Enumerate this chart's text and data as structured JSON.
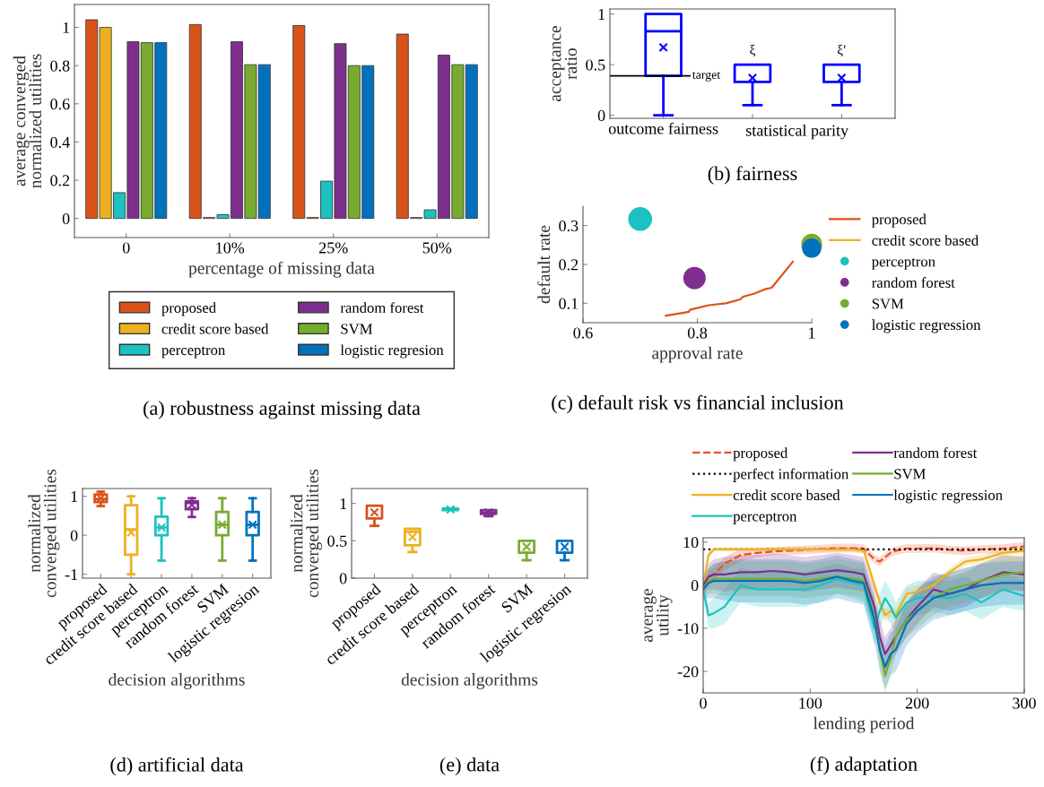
{
  "chart_data": [
    {
      "type": "bar",
      "title": "(a) robustness against missing data",
      "xlabel": "percentage of missing data",
      "ylabel": "average converged\nnormalized utilities",
      "categories": [
        "0",
        "10%",
        "25%",
        "50%"
      ],
      "ylim": [
        -0.1,
        1.12
      ],
      "yticks": [
        0,
        0.2,
        0.4,
        0.6,
        0.8,
        1
      ],
      "legend": "bottom",
      "series": [
        {
          "name": "proposed",
          "color": "#d95319",
          "values": [
            1.04,
            1.015,
            1.01,
            0.965
          ]
        },
        {
          "name": "credit score based",
          "color": "#edb120",
          "values": [
            1.0,
            0.005,
            0.005,
            0.005
          ]
        },
        {
          "name": "perceptron",
          "color": "#1cc2c2",
          "values": [
            0.135,
            0.02,
            0.195,
            0.045
          ]
        },
        {
          "name": "random forest",
          "color": "#7e2f8e",
          "values": [
            0.925,
            0.925,
            0.915,
            0.855
          ]
        },
        {
          "name": "SVM",
          "color": "#77ac30",
          "values": [
            0.92,
            0.805,
            0.8,
            0.805
          ]
        },
        {
          "name": "logistic regresion",
          "color": "#0072bd",
          "values": [
            0.92,
            0.805,
            0.8,
            0.805
          ]
        }
      ]
    },
    {
      "type": "box",
      "title": "(b) fairness",
      "ylabel": "acceptance\nratio",
      "categories": [
        "outcome fairness",
        null,
        null
      ],
      "ylim": [
        -0.03,
        1.05
      ],
      "yticks": [
        0,
        0.5,
        1
      ],
      "colors": [
        "#0000ff",
        "#0000ff",
        "#0000ff"
      ],
      "boxes": [
        {
          "low": 0,
          "q1": 0.39,
          "median": 0.83,
          "q3": 1.0,
          "high": 1.0,
          "mean": 0.67
        },
        {
          "low": 0.1,
          "q1": 0.33,
          "median": 0.33,
          "q3": 0.5,
          "high": 0.5,
          "mean": 0.37
        },
        {
          "low": 0.1,
          "q1": 0.33,
          "median": 0.33,
          "q3": 0.5,
          "high": 0.5,
          "mean": 0.37
        }
      ],
      "ref_lines": [
        {
          "axis": "y",
          "value": 0.39,
          "label": "target",
          "color": "#000000"
        }
      ],
      "annotations": [
        "ξ",
        "ξ′",
        "statistical parity"
      ]
    },
    {
      "type": "scatter",
      "title": "(c) default risk vs financial inclusion",
      "xlabel": "approval rate",
      "ylabel": "default rate",
      "xlim": [
        0.6,
        1.0
      ],
      "xticks": [
        0.6,
        0.8,
        1
      ],
      "ylim": [
        0.05,
        0.35
      ],
      "yticks": [
        0.1,
        0.2,
        0.3
      ],
      "legend": "right",
      "series": [
        {
          "name": "proposed",
          "type": "line",
          "color": "#d95319",
          "x": [
            0.745,
            0.785,
            0.787,
            0.82,
            0.85,
            0.875,
            0.88,
            0.9,
            0.92,
            0.93,
            0.967
          ],
          "values": [
            0.068,
            0.078,
            0.083,
            0.095,
            0.1,
            0.11,
            0.117,
            0.125,
            0.137,
            0.14,
            0.207
          ]
        },
        {
          "name": "credit score based",
          "type": "line",
          "color": "#edb120"
        },
        {
          "name": "perceptron",
          "color": "#1cc2c2",
          "x": [
            0.7
          ],
          "values": [
            0.317
          ]
        },
        {
          "name": "random forest",
          "color": "#7e2f8e",
          "x": [
            0.795
          ],
          "values": [
            0.165
          ]
        },
        {
          "name": "SVM",
          "color": "#77ac30",
          "x": [
            1.0
          ],
          "values": [
            0.252
          ]
        },
        {
          "name": "logistic regression",
          "color": "#0072bd",
          "x": [
            1.0
          ],
          "values": [
            0.242
          ]
        }
      ]
    },
    {
      "type": "box",
      "title": "(d) artificial data",
      "xlabel": "decision algorithms",
      "ylabel": "normalized\nconverged utilities",
      "categories": [
        "proposed",
        "credit score based",
        "perceptron",
        "random forest",
        "SVM",
        "logistic regresion"
      ],
      "ylim": [
        -1.1,
        1.2
      ],
      "yticks": [
        -1,
        0,
        1
      ],
      "colors": [
        "#d95319",
        "#edb120",
        "#1cc2c2",
        "#7e2f8e",
        "#77ac30",
        "#0072bd"
      ],
      "boxes": [
        {
          "low": 0.75,
          "q1": 0.85,
          "median": 0.93,
          "q3": 1.05,
          "high": 1.12,
          "mean": 0.95
        },
        {
          "low": -1.0,
          "q1": -0.5,
          "median": 0.15,
          "q3": 0.77,
          "high": 1.0,
          "mean": 0.07
        },
        {
          "low": -0.65,
          "q1": 0.0,
          "median": 0.2,
          "q3": 0.48,
          "high": 0.95,
          "mean": 0.2
        },
        {
          "low": 0.47,
          "q1": 0.67,
          "median": 0.83,
          "q3": 0.87,
          "high": 0.95,
          "mean": 0.78
        },
        {
          "low": -0.65,
          "q1": 0.0,
          "median": 0.27,
          "q3": 0.6,
          "high": 0.95,
          "mean": 0.27
        },
        {
          "low": -0.65,
          "q1": 0.0,
          "median": 0.27,
          "q3": 0.6,
          "high": 0.95,
          "mean": 0.27
        }
      ]
    },
    {
      "type": "box",
      "title": "(e) data",
      "xlabel": "decision algorithms",
      "ylabel": "normalized\nconverged utilities",
      "categories": [
        "proposed",
        "credit score based",
        "perceptron",
        "random forest",
        "SVM",
        "logistic regresion"
      ],
      "ylim": [
        0,
        1.2
      ],
      "yticks": [
        0,
        0.5,
        1
      ],
      "colors": [
        "#d95319",
        "#edb120",
        "#1cc2c2",
        "#7e2f8e",
        "#77ac30",
        "#0072bd"
      ],
      "boxes": [
        {
          "low": 0.7,
          "q1": 0.8,
          "median": 0.97,
          "q3": 0.97,
          "high": 0.97,
          "mean": 0.88
        },
        {
          "low": 0.35,
          "q1": 0.44,
          "median": 0.62,
          "q3": 0.66,
          "high": 0.66,
          "mean": 0.55
        },
        {
          "low": 0.91,
          "q1": 0.91,
          "median": 0.92,
          "q3": 0.93,
          "high": 0.93,
          "mean": 0.92
        },
        {
          "low": 0.83,
          "q1": 0.86,
          "median": 0.88,
          "q3": 0.91,
          "high": 0.91,
          "mean": 0.88
        },
        {
          "low": 0.24,
          "q1": 0.34,
          "median": 0.5,
          "q3": 0.5,
          "high": 0.5,
          "mean": 0.42
        },
        {
          "low": 0.24,
          "q1": 0.34,
          "median": 0.5,
          "q3": 0.5,
          "high": 0.5,
          "mean": 0.42
        }
      ]
    },
    {
      "type": "line",
      "title": "(f) adaptation",
      "xlabel": "lending period",
      "ylabel": "average\nutility",
      "xlim": [
        0,
        300
      ],
      "xticks": [
        0,
        100,
        200,
        300
      ],
      "ylim": [
        -25,
        11
      ],
      "yticks": [
        -20,
        -10,
        0,
        10
      ],
      "legend": "top",
      "x": [
        0,
        5,
        10,
        20,
        35,
        50,
        65,
        80,
        95,
        110,
        125,
        140,
        150,
        160,
        165,
        170,
        175,
        180,
        190,
        200,
        215,
        230,
        245,
        260,
        280,
        300
      ],
      "series": [
        {
          "name": "proposed",
          "color": "#e8502a",
          "line_style": "dashed",
          "values": [
            0,
            2,
            2.5,
            5,
            7,
            7.5,
            7.8,
            8,
            8.2,
            8.4,
            8.6,
            8.6,
            8.5,
            6,
            5.5,
            6.5,
            7.5,
            8,
            8.5,
            8.5,
            8.6,
            8.2,
            8,
            8.3,
            8.5,
            9
          ],
          "lower": [
            -1,
            0.5,
            1,
            3.5,
            5.5,
            6.5,
            7,
            7,
            7.2,
            7.4,
            7.6,
            7.6,
            7.5,
            5,
            4.5,
            5.5,
            6.5,
            7,
            7.5,
            7.5,
            7.6,
            7.2,
            7,
            7.3,
            7.5,
            8
          ],
          "upper": [
            1,
            3.5,
            4,
            6.5,
            8.5,
            8.5,
            8.8,
            9,
            9.2,
            9.4,
            9.6,
            9.6,
            9.5,
            7,
            6.5,
            7.5,
            8.5,
            9,
            9.5,
            9.5,
            9.6,
            9.2,
            9,
            9.3,
            9.5,
            10
          ]
        },
        {
          "name": "perfect information",
          "color": "#000000",
          "line_style": "dotted",
          "x": [
            0,
            300
          ],
          "values": [
            8.3,
            8.3
          ]
        },
        {
          "name": "credit score based",
          "color": "#edb120",
          "values": [
            0,
            7,
            8.3,
            8.3,
            8.3,
            8.3,
            8.3,
            8.3,
            8.3,
            8.3,
            8.3,
            8.3,
            8,
            0,
            -4,
            -7,
            -6,
            -7,
            -2,
            -1.5,
            0,
            3,
            5.5,
            6,
            7.5,
            8
          ],
          "lower": [
            -1,
            6,
            7.8,
            7.8,
            7.8,
            7.8,
            7.8,
            7.8,
            7.8,
            7.8,
            7.8,
            7.8,
            7.3,
            -1.5,
            -5.5,
            -8.5,
            -7.5,
            -8.5,
            -3.5,
            -3,
            -1,
            2,
            4.5,
            5,
            6.5,
            7.3
          ],
          "upper": [
            1,
            8,
            8.8,
            8.8,
            8.8,
            8.8,
            8.8,
            8.8,
            8.8,
            8.8,
            8.8,
            8.8,
            8.7,
            1.5,
            -2.5,
            -5.5,
            -4.5,
            -5.5,
            -0.5,
            0,
            1,
            4,
            6.5,
            7,
            8.5,
            8.7
          ]
        },
        {
          "name": "perceptron",
          "color": "#1cc2c2",
          "values": [
            -1,
            -7,
            -6.5,
            -5,
            0,
            -1,
            -1,
            -1,
            -1,
            0,
            1.5,
            0.5,
            0,
            -10,
            -6,
            -3,
            -5,
            -7.5,
            -4,
            -3,
            -2.5,
            -3,
            -2,
            -4,
            -1,
            -2.5
          ],
          "lower": [
            -3,
            -10,
            -10,
            -9,
            -4,
            -5,
            -5,
            -5,
            -5,
            -4,
            -2,
            -3,
            -4,
            -14,
            -10,
            -7,
            -9,
            -11,
            -8,
            -7,
            -6,
            -7,
            -6,
            -8,
            -5,
            -6
          ],
          "upper": [
            1,
            -4,
            -3,
            -1,
            4,
            3,
            3,
            3,
            3,
            4,
            5,
            4,
            4,
            -6,
            -2,
            1,
            -1,
            -4,
            0,
            1,
            1,
            1,
            2,
            0,
            3,
            1
          ]
        },
        {
          "name": "random forest",
          "color": "#7e2f8e",
          "values": [
            0,
            2,
            2.5,
            2.5,
            3,
            3,
            3.3,
            3,
            2.5,
            3,
            3.5,
            3,
            2.5,
            -5,
            -12,
            -16,
            -14,
            -12,
            -8,
            -5,
            -1,
            -2,
            -1,
            1,
            3,
            2.5
          ],
          "lower": [
            -2,
            -1,
            -1,
            -1.5,
            -1,
            -1,
            -0.7,
            -1,
            -1.5,
            -1,
            -0.5,
            -1,
            -1.5,
            -9,
            -16,
            -20,
            -18,
            -16,
            -12,
            -9,
            -5,
            -6,
            -5,
            -3,
            -1,
            -1.5
          ],
          "upper": [
            2,
            5,
            6,
            6.5,
            7,
            7,
            7.3,
            7,
            6.5,
            7,
            7.5,
            7,
            6.5,
            -1,
            -8,
            -12,
            -10,
            -8,
            -4,
            -1,
            3,
            2,
            3,
            5,
            7,
            6.5
          ]
        },
        {
          "name": "SVM",
          "color": "#77ac30",
          "values": [
            -1,
            1,
            1.5,
            1.5,
            1.5,
            1.5,
            1.5,
            1.5,
            1,
            1.5,
            2,
            1.5,
            1,
            -7,
            -15,
            -21,
            -17,
            -12,
            -8,
            -6,
            -3,
            -1,
            0,
            1,
            2.5,
            3
          ],
          "lower": [
            -3,
            -2,
            -2,
            -2.5,
            -2.5,
            -2.5,
            -2.5,
            -2.5,
            -3,
            -2.5,
            -2,
            -2.5,
            -3,
            -11,
            -19,
            -25,
            -21,
            -16,
            -12,
            -10,
            -7,
            -5,
            -4,
            -3,
            -1.5,
            -1
          ],
          "upper": [
            1,
            4,
            5,
            5.5,
            5.5,
            5.5,
            5.5,
            5.5,
            5,
            5.5,
            6,
            5.5,
            5,
            -3,
            -11,
            -17,
            -13,
            -8,
            -4,
            -2,
            1,
            3,
            4,
            5,
            6.5,
            7
          ]
        },
        {
          "name": "logistic regression",
          "color": "#0072bd",
          "values": [
            -1,
            0.5,
            1,
            1,
            1,
            1,
            1,
            1,
            0.5,
            1,
            2,
            1,
            0.5,
            -8,
            -15,
            -19,
            -16,
            -15,
            -9,
            -6,
            -3,
            -2,
            -1,
            0,
            0.5,
            0.5
          ],
          "lower": [
            -3,
            -3,
            -3,
            -3.5,
            -4,
            -4,
            -4,
            -4,
            -4.5,
            -4,
            -3,
            -4,
            -4.5,
            -13,
            -20,
            -24,
            -21,
            -20,
            -14,
            -11,
            -8,
            -7,
            -6,
            -5,
            -4.5,
            -4.5
          ],
          "upper": [
            1,
            4,
            5,
            5.5,
            6,
            6,
            6,
            6,
            5.5,
            6,
            7,
            6,
            5.5,
            -3,
            -10,
            -14,
            -11,
            -10,
            -4,
            -1,
            2,
            3,
            4,
            5,
            5.5,
            5.5
          ]
        }
      ]
    }
  ]
}
